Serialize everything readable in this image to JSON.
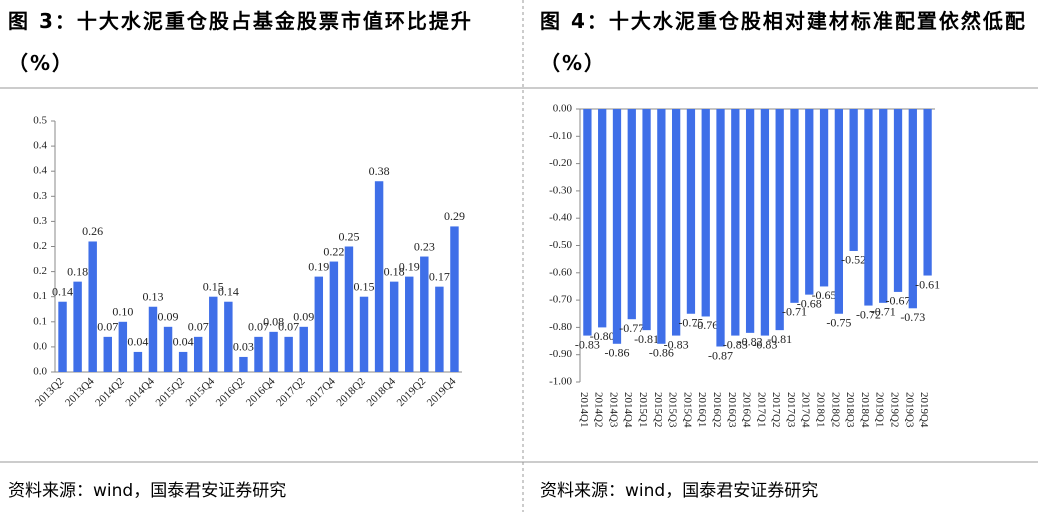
{
  "chart_data": [
    {
      "type": "bar",
      "title": "图 3：十大水泥重仓股占基金股票市值环比提升（%）",
      "source": "资料来源：wind，国泰君安证券研究",
      "color": "#3f6fe8",
      "categories": [
        "2013Q2",
        null,
        "2013Q4",
        null,
        "2014Q2",
        null,
        "2014Q4",
        null,
        "2015Q2",
        null,
        "2015Q4",
        null,
        "2016Q2",
        null,
        "2016Q4",
        null,
        "2017Q2",
        null,
        "2017Q4",
        null,
        "2018Q2",
        null,
        "2018Q4",
        null,
        "2019Q2",
        null,
        "2019Q4"
      ],
      "values": [
        0.14,
        0.18,
        0.26,
        0.07,
        0.1,
        0.04,
        0.13,
        0.09,
        0.04,
        0.07,
        0.15,
        0.14,
        0.03,
        0.07,
        0.08,
        0.07,
        0.09,
        0.19,
        0.22,
        0.25,
        0.15,
        0.38,
        0.18,
        0.19,
        0.23,
        0.17,
        0.29
      ],
      "value_labels": [
        "0.14",
        "0.18",
        "0.26",
        "0.07",
        "0.10",
        "0.04",
        "0.13",
        "0.09",
        "0.04",
        "0.07",
        "0.15",
        "0.14",
        "0.03",
        "0.07",
        "0.08",
        "0.07",
        "0.09",
        "0.19",
        "0.22",
        "0.25",
        "0.15",
        "0.38",
        "0.18",
        "0.19",
        "0.23",
        "0.17",
        "0.29"
      ],
      "ylim": [
        0,
        0.5
      ],
      "yticks": [
        {
          "value": 0,
          "label": "0.0"
        },
        {
          "value": 0.05,
          "label": "0.0"
        },
        0.1,
        {
          "value": 0.15,
          "label": "0.1"
        },
        0.2,
        {
          "value": 0.25,
          "label": "0.2"
        },
        0.3,
        {
          "value": 0.35,
          "label": "0.3"
        },
        0.4,
        {
          "value": 0.45,
          "label": "0.4"
        },
        0.5
      ]
    },
    {
      "type": "bar",
      "title": "图 4：十大水泥重仓股相对建材标准配置依然低配（%）",
      "source": "资料来源：wind，国泰君安证券研究",
      "color": "#3f6fe8",
      "categories": [
        "2014Q1",
        "2014Q2",
        "2014Q3",
        "2014Q4",
        "2015Q1",
        "2015Q2",
        "2015Q3",
        "2015Q4",
        "2016Q1",
        "2016Q2",
        "2016Q3",
        "2016Q4",
        "2017Q1",
        "2017Q2",
        "2017Q3",
        "2017Q4",
        "2018Q1",
        "2018Q2",
        "2018Q3",
        "2018Q4",
        "2019Q1",
        "2019Q2",
        "2019Q3",
        "2019Q4"
      ],
      "values": [
        -0.83,
        -0.8,
        -0.86,
        -0.77,
        -0.81,
        -0.86,
        -0.83,
        -0.75,
        -0.76,
        -0.87,
        -0.83,
        -0.82,
        -0.83,
        -0.81,
        -0.71,
        -0.68,
        -0.65,
        -0.75,
        -0.52,
        -0.72,
        -0.71,
        -0.67,
        -0.73,
        -0.61
      ],
      "value_labels": [
        "-0.83",
        "-0.80",
        "-0.86",
        "-0.77",
        "-0.81",
        "-0.86",
        "-0.83",
        "-0.75",
        "-0.76",
        "-0.87",
        "-0.83",
        "-0.82",
        "-0.83",
        "-0.81",
        "-0.71",
        "-0.68",
        "-0.65",
        "-0.75",
        "-0.52",
        "-0.72",
        "-0.71",
        "-0.67",
        "-0.73",
        "-0.61"
      ],
      "ylim": [
        -1,
        0
      ],
      "yticks": [
        {
          "value": 0,
          "label": "0.00"
        },
        {
          "value": -0.1,
          "label": "-0.10"
        },
        {
          "value": -0.2,
          "label": "-0.20"
        },
        {
          "value": -0.3,
          "label": "-0.30"
        },
        {
          "value": -0.4,
          "label": "-0.40"
        },
        {
          "value": -0.5,
          "label": "-0.50"
        },
        {
          "value": -0.6,
          "label": "-0.60"
        },
        {
          "value": -0.7,
          "label": "-0.70"
        },
        {
          "value": -0.8,
          "label": "-0.80"
        },
        {
          "value": -0.9,
          "label": "-0.90"
        },
        {
          "value": -1,
          "label": "-1.00"
        }
      ]
    }
  ]
}
